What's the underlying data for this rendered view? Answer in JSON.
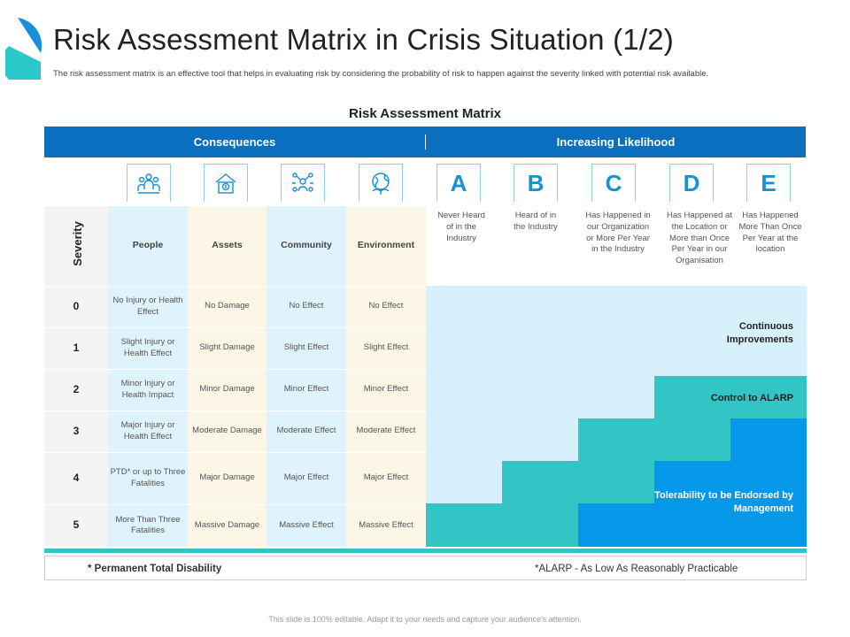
{
  "page": {
    "title": "Risk Assessment Matrix in Crisis Situation (1/2)",
    "subtitle": "The risk assessment matrix is an effective tool that helps in evaluating risk by considering the probability of risk to happen against the severity linked with potential risk available.",
    "footer": "This slide is 100% editable. Adapt it to your needs and capture your audience's attention."
  },
  "matrix": {
    "title": "Risk Assessment Matrix",
    "consequences_label": "Consequences",
    "likelihood_label": "Increasing Likelihood",
    "severity_label": "Severity",
    "columns": [
      "People",
      "Assets",
      "Community",
      "Environment"
    ],
    "column_icons": [
      "people-icon",
      "assets-icon",
      "community-icon",
      "environment-icon"
    ],
    "likelihood": [
      {
        "letter": "A",
        "desc": "Never Heard of in the Industry"
      },
      {
        "letter": "B",
        "desc": "Heard of in the Industry"
      },
      {
        "letter": "C",
        "desc": "Has Happened in our Organization or More Per Year in the Industry"
      },
      {
        "letter": "D",
        "desc": "Has Happened at the Location or More than Once Per Year in our Organisation"
      },
      {
        "letter": "E",
        "desc": "Has Happened More Than Once Per Year at the location"
      }
    ],
    "rows": [
      {
        "sev": "0",
        "people": "No Injury or Health Effect",
        "assets": "No Damage",
        "community": "No Effect",
        "environment": "No Effect"
      },
      {
        "sev": "1",
        "people": "Slight Injury or Health Effect",
        "assets": "Slight Damage",
        "community": "Slight Effect",
        "environment": "Slight Effect"
      },
      {
        "sev": "2",
        "people": "Minor Injury or Health Impact",
        "assets": "Minor Damage",
        "community": "Minor Effect",
        "environment": "Minor Effect"
      },
      {
        "sev": "3",
        "people": "Major Injury or Health Effect",
        "assets": "Moderate Damage",
        "community": "Moderate Effect",
        "environment": "Moderate Effect"
      },
      {
        "sev": "4",
        "people": "PTD* or up to Three Fatalities",
        "assets": "Major Damage",
        "community": "Major Effect",
        "environment": "Major Effect"
      },
      {
        "sev": "5",
        "people": "More Than Three Fatalities",
        "assets": "Massive Damage",
        "community": "Massive Effect",
        "environment": "Massive Effect"
      }
    ],
    "zones": {
      "continuous": "Continuous Improvements",
      "alarp": "Control to ALARP",
      "tolerability": "Tolerability to be Endorsed by Management"
    },
    "colors": {
      "header_blue": "#0b6fbf",
      "light_zone": "#d6f1fc",
      "teal_zone": "#31c5c6",
      "blue_zone": "#0598e9"
    }
  },
  "footnotes": {
    "ptd": "* Permanent Total Disability",
    "alarp": "*ALARP - As Low As Reasonably Practicable"
  }
}
